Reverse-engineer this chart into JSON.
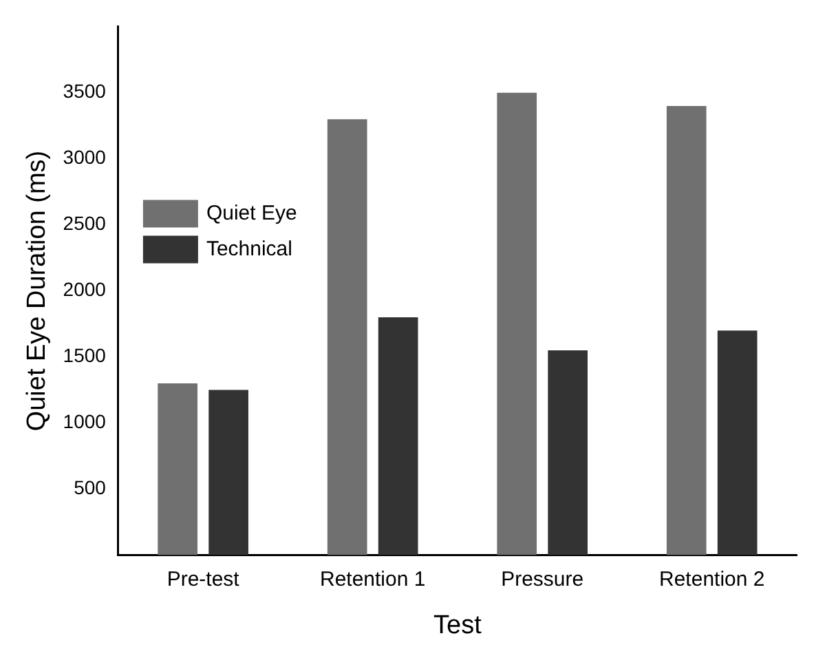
{
  "chart_data": {
    "type": "bar",
    "xlabel": "Test",
    "ylabel": "Quiet Eye Duration (ms)",
    "categories": [
      "Pre-test",
      "Retention 1",
      "Pressure",
      "Retention 2"
    ],
    "series": [
      {
        "name": "Quiet Eye",
        "color": "#707070",
        "values": [
          1300,
          3300,
          3500,
          3400
        ]
      },
      {
        "name": "Technical",
        "color": "#333333",
        "values": [
          1250,
          1800,
          1550,
          1700
        ]
      }
    ],
    "ylim": [
      0,
      4000
    ],
    "yticks": [
      500,
      1000,
      1500,
      2000,
      2500,
      3000,
      3500
    ],
    "grid": false,
    "legend": "left"
  }
}
